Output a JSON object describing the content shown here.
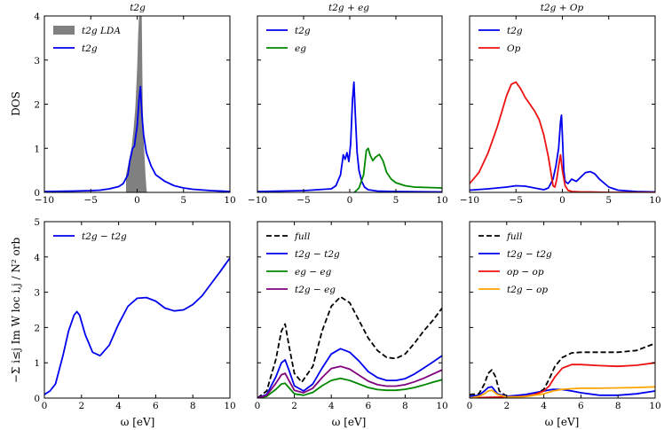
{
  "figure": {
    "ylabel_top": "DOS",
    "ylabel_bottom": "−Σ i≤j Im W loc i,j / N² orb",
    "xlabel_bottom": "ω [eV]"
  },
  "chart_data": [
    {
      "id": "dos-t2g",
      "type": "line",
      "title": "t2g",
      "xlim": [
        -10,
        10
      ],
      "ylim": [
        0,
        4
      ],
      "xticks": [
        -10,
        -5,
        0,
        5,
        10
      ],
      "yticks": [
        0,
        1,
        2,
        3,
        4
      ],
      "ylabel": "DOS",
      "series": [
        {
          "name": "t2g LDA",
          "kind": "fill",
          "color": "#808080",
          "x": [
            -1.2,
            -1.2,
            -1.0,
            -0.8,
            -0.6,
            -0.4,
            -0.2,
            0.0,
            0.1,
            0.2,
            0.25,
            0.3,
            0.35,
            0.5,
            0.55,
            0.6,
            0.7,
            0.9,
            1.0,
            1.05
          ],
          "y": [
            0,
            0.4,
            0.6,
            0.8,
            1.0,
            1.4,
            1.9,
            2.8,
            3.5,
            4.0,
            4.0,
            4.0,
            4.0,
            4.0,
            3.0,
            2.0,
            1.2,
            0.4,
            0.1,
            0
          ]
        },
        {
          "name": "t2g",
          "kind": "line",
          "color": "#0000ee",
          "x": [
            -10,
            -7,
            -5,
            -4,
            -3,
            -2,
            -1.5,
            -1,
            -0.8,
            -0.5,
            -0.3,
            -0.2,
            0,
            0.2,
            0.35,
            0.5,
            0.7,
            1.0,
            1.5,
            2.0,
            3.0,
            4.0,
            5.0,
            6.0,
            8.0,
            10.0
          ],
          "y": [
            0.02,
            0.03,
            0.04,
            0.05,
            0.08,
            0.13,
            0.2,
            0.4,
            0.7,
            1.0,
            1.05,
            1.2,
            1.5,
            2.1,
            2.4,
            1.8,
            1.3,
            0.9,
            0.6,
            0.4,
            0.25,
            0.15,
            0.1,
            0.07,
            0.04,
            0.02
          ]
        }
      ]
    },
    {
      "id": "dos-t2g-eg",
      "type": "line",
      "title": "t2g + eg",
      "xlim": [
        -10,
        10
      ],
      "ylim": [
        0,
        4
      ],
      "xticks": [
        -10,
        -5,
        0,
        5,
        10
      ],
      "yticks": [
        0,
        1,
        2,
        3,
        4
      ],
      "series": [
        {
          "name": "t2g",
          "kind": "line",
          "color": "#0000ee",
          "x": [
            -10,
            -5,
            -2,
            -1.5,
            -1,
            -0.7,
            -0.5,
            -0.3,
            -0.1,
            0.1,
            0.3,
            0.45,
            0.6,
            0.8,
            1.0,
            1.3,
            1.6,
            2.0,
            3.0,
            5.0,
            10.0
          ],
          "y": [
            0.02,
            0.04,
            0.08,
            0.15,
            0.4,
            0.85,
            0.75,
            0.9,
            0.7,
            1.1,
            2.1,
            2.5,
            1.8,
            0.9,
            0.5,
            0.25,
            0.12,
            0.06,
            0.03,
            0.02,
            0.01
          ]
        },
        {
          "name": "eg",
          "kind": "line",
          "color": "#008800",
          "x": [
            0.5,
            1.0,
            1.5,
            1.8,
            2.0,
            2.2,
            2.5,
            2.8,
            3.2,
            3.6,
            4.0,
            4.5,
            5.0,
            6.0,
            7.0,
            10.0
          ],
          "y": [
            0.0,
            0.1,
            0.4,
            0.95,
            1.0,
            0.85,
            0.72,
            0.8,
            0.86,
            0.72,
            0.45,
            0.3,
            0.22,
            0.15,
            0.12,
            0.1
          ]
        }
      ]
    },
    {
      "id": "dos-t2g-op",
      "type": "line",
      "title": "t2g + Op",
      "xlim": [
        -10,
        10
      ],
      "ylim": [
        0,
        4
      ],
      "xticks": [
        -10,
        -5,
        0,
        5,
        10
      ],
      "yticks": [
        0,
        1,
        2,
        3,
        4
      ],
      "series": [
        {
          "name": "t2g",
          "kind": "line",
          "color": "#0000ee",
          "x": [
            -10,
            -8,
            -6,
            -5,
            -4,
            -3,
            -2,
            -1.5,
            -1,
            -0.7,
            -0.4,
            -0.2,
            -0.1,
            0,
            0.15,
            0.3,
            0.6,
            1.0,
            1.5,
            2.0,
            2.5,
            3.0,
            3.5,
            4.0,
            5.0,
            6.0,
            8.0,
            10.0
          ],
          "y": [
            0.05,
            0.08,
            0.12,
            0.15,
            0.14,
            0.1,
            0.06,
            0.1,
            0.3,
            0.6,
            1.0,
            1.6,
            1.75,
            1.3,
            0.5,
            0.25,
            0.2,
            0.3,
            0.25,
            0.35,
            0.45,
            0.47,
            0.42,
            0.3,
            0.12,
            0.05,
            0.02,
            0.01
          ]
        },
        {
          "name": "Op",
          "kind": "line",
          "color": "#ee1111",
          "x": [
            -10,
            -9,
            -8,
            -7,
            -6,
            -5.5,
            -5,
            -4.5,
            -4,
            -3.5,
            -3,
            -2.5,
            -2,
            -1.5,
            -1.2,
            -1.0,
            -0.8,
            -0.6,
            -0.4,
            -0.2,
            0,
            0.3,
            0.6,
            1.0,
            2.0,
            3.0,
            5.0,
            10.0
          ],
          "y": [
            0.2,
            0.45,
            0.9,
            1.5,
            2.2,
            2.45,
            2.5,
            2.35,
            2.15,
            2.0,
            1.85,
            1.65,
            1.3,
            0.8,
            0.4,
            0.15,
            0.12,
            0.3,
            0.6,
            0.85,
            0.5,
            0.15,
            0.05,
            0.02,
            0.01,
            0.01,
            0.0,
            0.0
          ]
        }
      ]
    },
    {
      "id": "w-t2g",
      "type": "line",
      "title": "",
      "xlim": [
        0,
        10
      ],
      "ylim": [
        0,
        5
      ],
      "xticks": [
        0,
        2,
        4,
        6,
        8,
        10
      ],
      "yticks": [
        0,
        1,
        2,
        3,
        4,
        5
      ],
      "xlabel": "ω [eV]",
      "series": [
        {
          "name": "t2g − t2g",
          "kind": "line",
          "color": "#0000ee",
          "x": [
            0,
            0.3,
            0.6,
            1.0,
            1.3,
            1.6,
            1.75,
            1.9,
            2.2,
            2.6,
            3.0,
            3.5,
            4.0,
            4.5,
            5.0,
            5.5,
            6.0,
            6.5,
            7.0,
            7.5,
            8.0,
            8.5,
            9.0,
            9.5,
            10.0
          ],
          "y": [
            0.1,
            0.2,
            0.4,
            1.2,
            1.9,
            2.35,
            2.45,
            2.35,
            1.8,
            1.3,
            1.2,
            1.5,
            2.1,
            2.6,
            2.83,
            2.85,
            2.75,
            2.55,
            2.47,
            2.5,
            2.65,
            2.9,
            3.25,
            3.6,
            3.97
          ]
        }
      ]
    },
    {
      "id": "w-t2g-eg",
      "type": "line",
      "title": "",
      "xlim": [
        0,
        10
      ],
      "ylim": [
        0,
        5
      ],
      "xticks": [
        0,
        2,
        4,
        6,
        8,
        10
      ],
      "yticks": [
        0,
        1,
        2,
        3,
        4,
        5
      ],
      "xlabel": "ω [eV]",
      "series": [
        {
          "name": "full",
          "kind": "line",
          "dash": true,
          "color": "#000000",
          "x": [
            0,
            0.5,
            1.0,
            1.3,
            1.5,
            1.7,
            2.0,
            2.4,
            3.0,
            3.5,
            4.0,
            4.5,
            5.0,
            5.5,
            6.0,
            6.5,
            7.0,
            7.5,
            8.0,
            8.5,
            9.0,
            9.5,
            10.0
          ],
          "y": [
            0.0,
            0.2,
            1.1,
            1.9,
            2.1,
            1.5,
            0.7,
            0.45,
            0.9,
            1.9,
            2.6,
            2.87,
            2.7,
            2.2,
            1.7,
            1.35,
            1.15,
            1.12,
            1.25,
            1.55,
            1.9,
            2.2,
            2.55
          ]
        },
        {
          "name": "t2g − t2g",
          "kind": "line",
          "color": "#0000ee",
          "x": [
            0,
            0.5,
            1.0,
            1.3,
            1.5,
            1.7,
            2.0,
            2.5,
            3.0,
            3.5,
            4.0,
            4.5,
            5.0,
            5.5,
            6.0,
            6.5,
            7.0,
            7.5,
            8.0,
            8.5,
            9.0,
            9.5,
            10.0
          ],
          "y": [
            0.0,
            0.1,
            0.6,
            1.0,
            1.08,
            0.8,
            0.35,
            0.2,
            0.4,
            0.85,
            1.25,
            1.4,
            1.3,
            1.05,
            0.75,
            0.58,
            0.5,
            0.5,
            0.55,
            0.68,
            0.85,
            1.02,
            1.2
          ]
        },
        {
          "name": "eg − eg",
          "kind": "line",
          "color": "#008800",
          "x": [
            0,
            0.5,
            1.0,
            1.3,
            1.5,
            1.7,
            2.0,
            2.5,
            3.0,
            3.5,
            4.0,
            4.5,
            5.0,
            5.5,
            6.0,
            6.5,
            7.0,
            7.5,
            8.0,
            8.5,
            9.0,
            9.5,
            10.0
          ],
          "y": [
            0.0,
            0.05,
            0.25,
            0.4,
            0.42,
            0.3,
            0.12,
            0.08,
            0.16,
            0.35,
            0.5,
            0.56,
            0.5,
            0.4,
            0.3,
            0.24,
            0.22,
            0.22,
            0.25,
            0.3,
            0.37,
            0.45,
            0.52
          ]
        },
        {
          "name": "t2g − eg",
          "kind": "line",
          "color": "#800080",
          "x": [
            0,
            0.5,
            1.0,
            1.3,
            1.5,
            1.7,
            2.0,
            2.5,
            3.0,
            3.5,
            4.0,
            4.5,
            5.0,
            5.5,
            6.0,
            6.5,
            7.0,
            7.5,
            8.0,
            8.5,
            9.0,
            9.5,
            10.0
          ],
          "y": [
            0.0,
            0.08,
            0.42,
            0.66,
            0.7,
            0.5,
            0.22,
            0.15,
            0.28,
            0.58,
            0.84,
            0.9,
            0.82,
            0.65,
            0.48,
            0.38,
            0.34,
            0.34,
            0.38,
            0.46,
            0.56,
            0.68,
            0.8
          ]
        }
      ]
    },
    {
      "id": "w-t2g-op",
      "type": "line",
      "title": "",
      "xlim": [
        0,
        10
      ],
      "ylim": [
        0,
        5
      ],
      "xticks": [
        0,
        2,
        4,
        6,
        8,
        10
      ],
      "yticks": [
        0,
        1,
        2,
        3,
        4,
        5
      ],
      "xlabel": "ω [eV]",
      "series": [
        {
          "name": "full",
          "kind": "line",
          "dash": true,
          "color": "#000000",
          "x": [
            0,
            0.5,
            0.8,
            1.0,
            1.2,
            1.4,
            1.6,
            2.0,
            3.0,
            3.5,
            4.0,
            4.3,
            4.6,
            5.0,
            5.5,
            6.0,
            7.0,
            8.0,
            9.0,
            9.5,
            10.0
          ],
          "y": [
            0.1,
            0.12,
            0.4,
            0.7,
            0.8,
            0.6,
            0.2,
            0.05,
            0.05,
            0.1,
            0.25,
            0.55,
            0.9,
            1.15,
            1.28,
            1.3,
            1.3,
            1.3,
            1.35,
            1.45,
            1.55
          ]
        },
        {
          "name": "t2g − t2g",
          "kind": "line",
          "color": "#0000ee",
          "x": [
            0,
            0.5,
            0.8,
            1.0,
            1.2,
            1.5,
            2.0,
            3.0,
            4.0,
            4.5,
            5.0,
            5.5,
            6.0,
            7.0,
            8.0,
            9.0,
            10.0
          ],
          "y": [
            0.05,
            0.08,
            0.2,
            0.3,
            0.32,
            0.12,
            0.05,
            0.1,
            0.2,
            0.25,
            0.24,
            0.2,
            0.15,
            0.08,
            0.08,
            0.12,
            0.2
          ]
        },
        {
          "name": "op − op",
          "kind": "line",
          "color": "#ee1111",
          "x": [
            0,
            1.0,
            2.0,
            3.0,
            3.5,
            4.0,
            4.3,
            4.6,
            5.0,
            5.5,
            6.0,
            7.0,
            8.0,
            9.0,
            10.0
          ],
          "y": [
            0.0,
            0.02,
            0.03,
            0.05,
            0.1,
            0.2,
            0.35,
            0.6,
            0.85,
            0.95,
            0.95,
            0.92,
            0.9,
            0.93,
            1.0
          ]
        },
        {
          "name": "t2g − op",
          "kind": "line",
          "color": "#ffa500",
          "x": [
            0,
            0.5,
            0.8,
            1.0,
            1.2,
            1.5,
            2.0,
            3.0,
            4.0,
            4.5,
            5.0,
            6.0,
            7.0,
            8.0,
            9.0,
            10.0
          ],
          "y": [
            0.0,
            0.05,
            0.12,
            0.2,
            0.22,
            0.1,
            0.03,
            0.04,
            0.12,
            0.2,
            0.25,
            0.28,
            0.28,
            0.29,
            0.3,
            0.32
          ]
        }
      ]
    }
  ]
}
